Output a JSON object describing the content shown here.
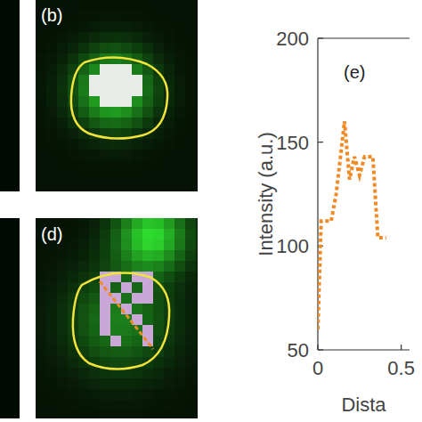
{
  "chart_data": {
    "type": "line",
    "panel_label": "(e)",
    "x_label": "Dista",
    "y_label": "Intensity (a.u.)",
    "x": [
      0.0,
      0.02,
      0.08,
      0.11,
      0.16,
      0.19,
      0.22,
      0.25,
      0.28,
      0.33,
      0.36,
      0.41
    ],
    "values": [
      60,
      112,
      112,
      125,
      160,
      132,
      143,
      134,
      143,
      143,
      104,
      104
    ],
    "color": "#f08a24",
    "line_style": "dotted",
    "xlim": [
      0,
      0.55
    ],
    "ylim": [
      50,
      200
    ],
    "xticks": [
      0,
      0.5
    ],
    "yticks": [
      50,
      100,
      150,
      200
    ]
  },
  "images": [
    {
      "label": "(b)"
    },
    {
      "label": "(d)"
    }
  ]
}
